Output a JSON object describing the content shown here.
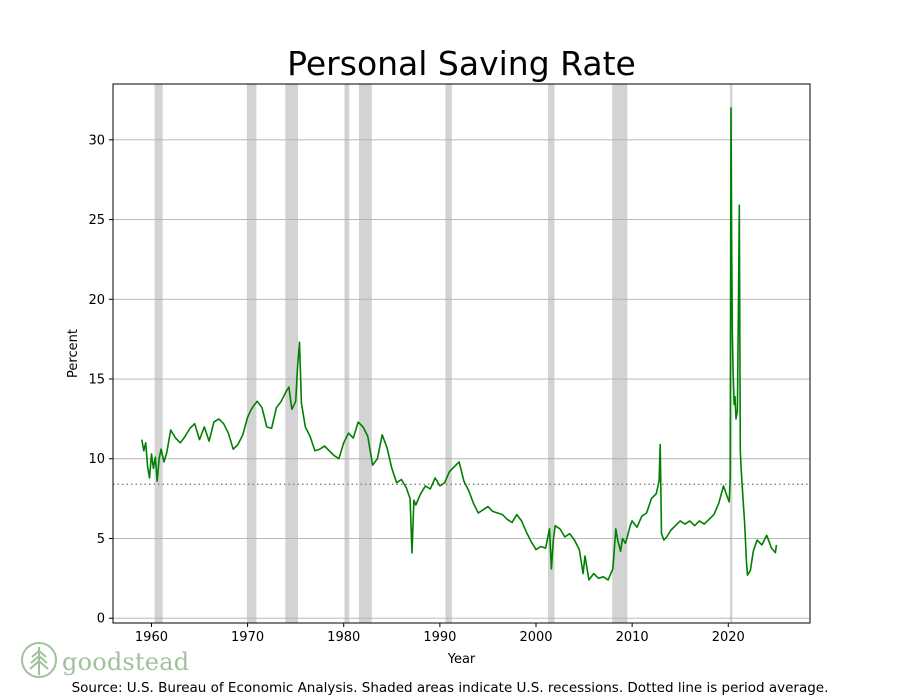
{
  "chart_data": {
    "type": "line",
    "title": "Personal Saving Rate",
    "xlabel": "Year",
    "ylabel": "Percent",
    "xlim": [
      1956,
      2028.5
    ],
    "ylim": [
      -0.3,
      33.5
    ],
    "xticks": [
      1960,
      1970,
      1980,
      1990,
      2000,
      2010,
      2020
    ],
    "yticks": [
      0,
      5,
      10,
      15,
      20,
      25,
      30
    ],
    "grid": "horizontal",
    "line_color": "#008000",
    "recession_color": "#d3d3d3",
    "average_line": {
      "value": 8.4,
      "style": "dotted",
      "color": "#808080"
    },
    "recessions": [
      [
        1960.33,
        1961.17
      ],
      [
        1969.92,
        1970.92
      ],
      [
        1973.92,
        1975.25
      ],
      [
        1980.08,
        1980.58
      ],
      [
        1981.58,
        1982.92
      ],
      [
        1990.58,
        1991.25
      ],
      [
        2001.25,
        2001.92
      ],
      [
        2007.92,
        2009.5
      ],
      [
        2020.17,
        2020.42
      ]
    ],
    "series": [
      {
        "x": [
          1959.0,
          1959.2,
          1959.4,
          1959.6,
          1959.8,
          1960.0,
          1960.2,
          1960.4,
          1960.6,
          1960.8,
          1961.0,
          1961.3,
          1961.6,
          1962.0,
          1962.5,
          1963.0,
          1963.5,
          1964.0,
          1964.5,
          1965.0,
          1965.5,
          1966.0,
          1966.5,
          1967.0,
          1967.5,
          1968.0,
          1968.5,
          1969.0,
          1969.5,
          1970.0,
          1970.3,
          1970.6,
          1971.0,
          1971.5,
          1972.0,
          1972.5,
          1973.0,
          1973.5,
          1974.0,
          1974.3,
          1974.6,
          1975.0,
          1975.2,
          1975.4,
          1975.6,
          1976.0,
          1976.5,
          1977.0,
          1977.5,
          1978.0,
          1978.5,
          1979.0,
          1979.5,
          1980.0,
          1980.5,
          1981.0,
          1981.5,
          1982.0,
          1982.5,
          1983.0,
          1983.5,
          1984.0,
          1984.5,
          1985.0,
          1985.5,
          1986.0,
          1986.5,
          1986.9,
          1987.1,
          1987.3,
          1987.5,
          1988.0,
          1988.5,
          1989.0,
          1989.5,
          1990.0,
          1990.5,
          1991.0,
          1991.5,
          1992.0,
          1992.5,
          1993.0,
          1993.5,
          1994.0,
          1994.5,
          1995.0,
          1995.5,
          1996.0,
          1996.5,
          1997.0,
          1997.5,
          1998.0,
          1998.5,
          1999.0,
          1999.5,
          2000.0,
          2000.5,
          2001.0,
          2001.4,
          2001.6,
          2001.8,
          2002.0,
          2002.5,
          2003.0,
          2003.5,
          2004.0,
          2004.5,
          2004.9,
          2005.1,
          2005.5,
          2006.0,
          2006.5,
          2007.0,
          2007.5,
          2008.0,
          2008.3,
          2008.5,
          2008.8,
          2009.0,
          2009.3,
          2009.5,
          2009.8,
          2010.0,
          2010.5,
          2011.0,
          2011.5,
          2012.0,
          2012.5,
          2012.8,
          2012.92,
          2013.05,
          2013.3,
          2013.6,
          2014.0,
          2014.5,
          2015.0,
          2015.5,
          2016.0,
          2016.5,
          2017.0,
          2017.5,
          2018.0,
          2018.5,
          2019.0,
          2019.5,
          2019.9,
          2020.1,
          2020.2,
          2020.28,
          2020.35,
          2020.42,
          2020.5,
          2020.6,
          2020.7,
          2020.8,
          2020.95,
          2021.05,
          2021.15,
          2021.25,
          2021.35,
          2021.5,
          2021.7,
          2021.9,
          2022.0,
          2022.3,
          2022.6,
          2023.0,
          2023.5,
          2024.0,
          2024.5,
          2024.9,
          2025.0
        ],
        "y": [
          11.2,
          10.5,
          11.0,
          9.5,
          8.8,
          10.3,
          9.4,
          10.1,
          8.6,
          10.0,
          10.6,
          9.8,
          10.4,
          11.8,
          11.3,
          11.0,
          11.4,
          11.9,
          12.2,
          11.2,
          12.0,
          11.1,
          12.3,
          12.5,
          12.2,
          11.6,
          10.6,
          10.9,
          11.5,
          12.6,
          13.0,
          13.3,
          13.6,
          13.2,
          12.0,
          11.9,
          13.2,
          13.6,
          14.2,
          14.5,
          13.1,
          13.6,
          15.8,
          17.3,
          13.5,
          12.0,
          11.4,
          10.5,
          10.6,
          10.8,
          10.5,
          10.2,
          10.0,
          11.0,
          11.6,
          11.3,
          12.3,
          12.0,
          11.4,
          9.6,
          10.0,
          11.5,
          10.7,
          9.4,
          8.5,
          8.7,
          8.2,
          7.5,
          4.1,
          7.4,
          7.1,
          7.8,
          8.3,
          8.1,
          8.8,
          8.3,
          8.5,
          9.2,
          9.5,
          9.8,
          8.6,
          8.0,
          7.2,
          6.6,
          6.8,
          7.0,
          6.7,
          6.6,
          6.5,
          6.2,
          6.0,
          6.5,
          6.1,
          5.4,
          4.8,
          4.3,
          4.5,
          4.4,
          5.6,
          3.1,
          4.9,
          5.8,
          5.6,
          5.1,
          5.3,
          4.9,
          4.3,
          2.8,
          3.9,
          2.4,
          2.8,
          2.5,
          2.6,
          2.4,
          3.1,
          5.6,
          4.9,
          4.2,
          5.0,
          4.7,
          5.1,
          5.8,
          6.1,
          5.7,
          6.4,
          6.6,
          7.5,
          7.8,
          8.6,
          10.9,
          5.3,
          4.9,
          5.1,
          5.5,
          5.8,
          6.1,
          5.9,
          6.1,
          5.8,
          6.1,
          5.9,
          6.2,
          6.5,
          7.2,
          8.3,
          7.6,
          7.3,
          8.8,
          32.0,
          24.0,
          18.0,
          15.5,
          13.4,
          13.9,
          12.5,
          13.0,
          19.3,
          25.9,
          10.5,
          9.2,
          7.8,
          6.0,
          3.5,
          2.7,
          3.0,
          4.2,
          4.9,
          4.6,
          5.2,
          4.4,
          4.1,
          4.6
        ]
      }
    ]
  },
  "footer": {
    "source": "Source: U.S. Bureau of Economic Analysis. Shaded areas indicate U.S. recessions. Dotted line is period average."
  },
  "logo": {
    "text": "goodstead",
    "color": "#9fc29b",
    "icon": "tree-icon"
  }
}
